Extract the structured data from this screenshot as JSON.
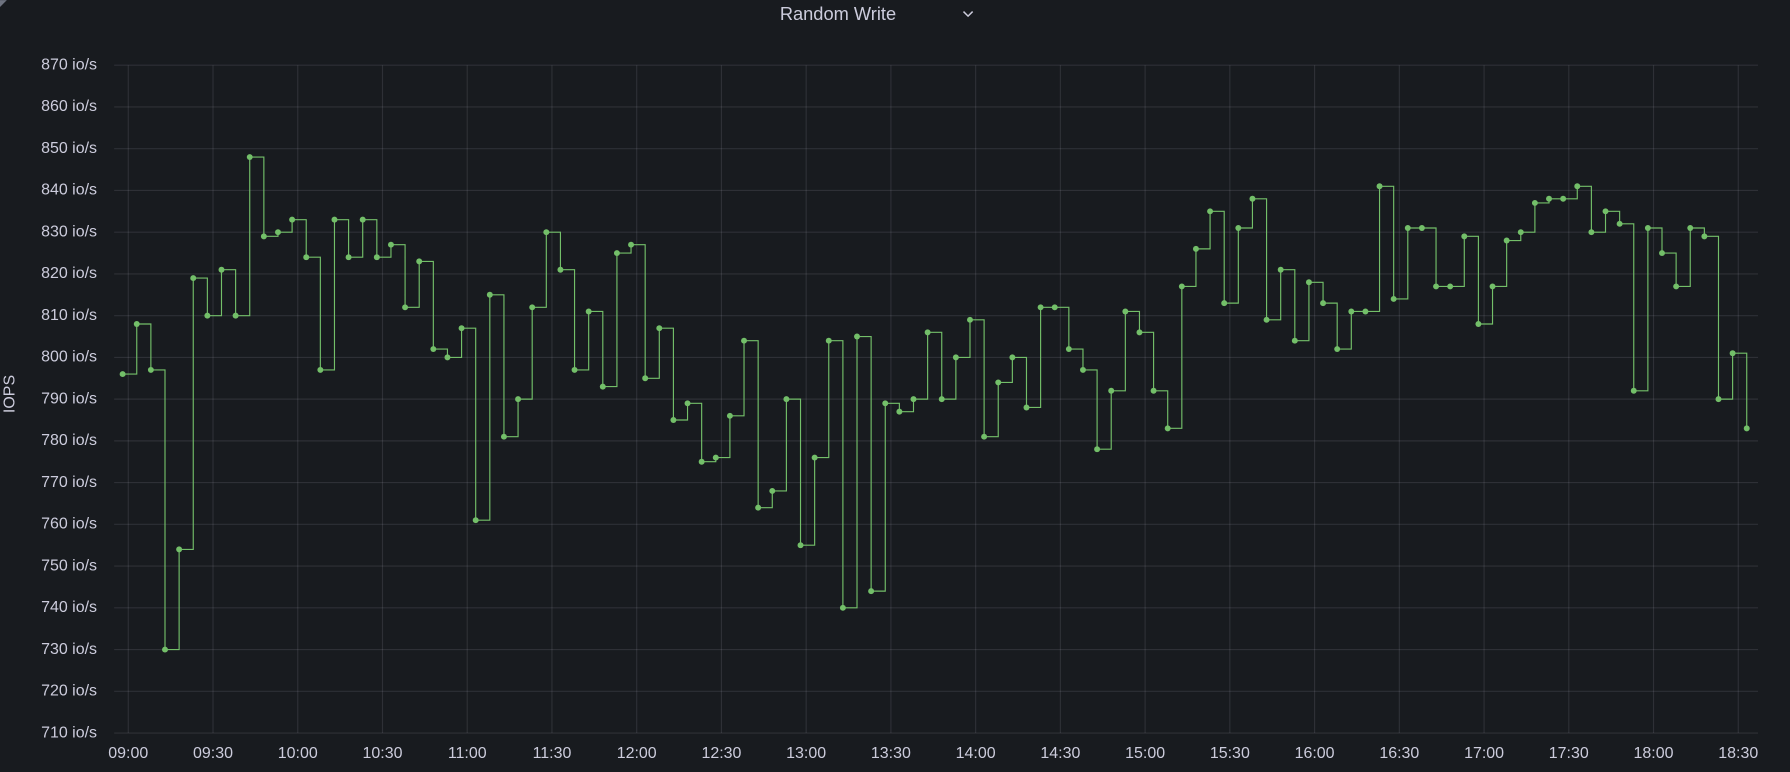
{
  "chart_data": {
    "type": "line",
    "title": "Random Write",
    "y_label": "IOPS",
    "step": "after",
    "grid": true,
    "color": "#73bf69",
    "xlim": [
      "08:55",
      "18:37"
    ],
    "xticks": [
      "09:00",
      "09:30",
      "10:00",
      "10:30",
      "11:00",
      "11:30",
      "12:00",
      "12:30",
      "13:00",
      "13:30",
      "14:00",
      "14:30",
      "15:00",
      "15:30",
      "16:00",
      "16:30",
      "17:00",
      "17:30",
      "18:00",
      "18:30"
    ],
    "ylim": [
      710,
      870
    ],
    "yticks": [
      {
        "value": 710,
        "label": "710 io/s"
      },
      {
        "value": 720,
        "label": "720 io/s"
      },
      {
        "value": 730,
        "label": "730 io/s"
      },
      {
        "value": 740,
        "label": "740 io/s"
      },
      {
        "value": 750,
        "label": "750 io/s"
      },
      {
        "value": 760,
        "label": "760 io/s"
      },
      {
        "value": 770,
        "label": "770 io/s"
      },
      {
        "value": 780,
        "label": "780 io/s"
      },
      {
        "value": 790,
        "label": "790 io/s"
      },
      {
        "value": 800,
        "label": "800 io/s"
      },
      {
        "value": 810,
        "label": "810 io/s"
      },
      {
        "value": 820,
        "label": "820 io/s"
      },
      {
        "value": 830,
        "label": "830 io/s"
      },
      {
        "value": 840,
        "label": "840 io/s"
      },
      {
        "value": 850,
        "label": "850 io/s"
      },
      {
        "value": 860,
        "label": "860 io/s"
      },
      {
        "value": 870,
        "label": "870 io/s"
      }
    ],
    "x": [
      "08:58",
      "09:03",
      "09:08",
      "09:13",
      "09:18",
      "09:23",
      "09:28",
      "09:33",
      "09:38",
      "09:43",
      "09:48",
      "09:53",
      "09:58",
      "10:03",
      "10:08",
      "10:13",
      "10:18",
      "10:23",
      "10:28",
      "10:33",
      "10:38",
      "10:43",
      "10:48",
      "10:53",
      "10:58",
      "11:03",
      "11:08",
      "11:13",
      "11:18",
      "11:23",
      "11:28",
      "11:33",
      "11:38",
      "11:43",
      "11:48",
      "11:53",
      "11:58",
      "12:03",
      "12:08",
      "12:13",
      "12:18",
      "12:23",
      "12:28",
      "12:33",
      "12:38",
      "12:43",
      "12:48",
      "12:53",
      "12:58",
      "13:03",
      "13:08",
      "13:13",
      "13:18",
      "13:23",
      "13:28",
      "13:33",
      "13:38",
      "13:43",
      "13:48",
      "13:53",
      "13:58",
      "14:03",
      "14:08",
      "14:13",
      "14:18",
      "14:23",
      "14:28",
      "14:33",
      "14:38",
      "14:43",
      "14:48",
      "14:53",
      "14:58",
      "15:03",
      "15:08",
      "15:13",
      "15:18",
      "15:23",
      "15:28",
      "15:33",
      "15:38",
      "15:43",
      "15:48",
      "15:53",
      "15:58",
      "16:03",
      "16:08",
      "16:13",
      "16:18",
      "16:23",
      "16:28",
      "16:33",
      "16:38",
      "16:43",
      "16:48",
      "16:53",
      "16:58",
      "17:03",
      "17:08",
      "17:13",
      "17:18",
      "17:23",
      "17:28",
      "17:33",
      "17:38",
      "17:43",
      "17:48",
      "17:53",
      "17:58",
      "18:03",
      "18:08",
      "18:13",
      "18:18",
      "18:23",
      "18:28",
      "18:33"
    ],
    "values": [
      796,
      808,
      797,
      730,
      754,
      819,
      810,
      821,
      810,
      848,
      829,
      830,
      833,
      824,
      797,
      833,
      824,
      833,
      824,
      827,
      812,
      823,
      802,
      800,
      807,
      761,
      815,
      781,
      790,
      812,
      830,
      821,
      797,
      811,
      793,
      825,
      827,
      795,
      807,
      785,
      789,
      775,
      776,
      786,
      804,
      764,
      768,
      790,
      755,
      776,
      804,
      740,
      805,
      744,
      789,
      787,
      790,
      806,
      790,
      800,
      809,
      781,
      794,
      800,
      788,
      812,
      812,
      802,
      797,
      778,
      792,
      811,
      806,
      792,
      783,
      817,
      826,
      835,
      813,
      831,
      838,
      809,
      821,
      804,
      818,
      813,
      802,
      811,
      811,
      841,
      814,
      831,
      831,
      817,
      817,
      829,
      808,
      817,
      828,
      830,
      837,
      838,
      838,
      841,
      830,
      835,
      832,
      792,
      831,
      825,
      817,
      831,
      829,
      790,
      801,
      783
    ]
  }
}
